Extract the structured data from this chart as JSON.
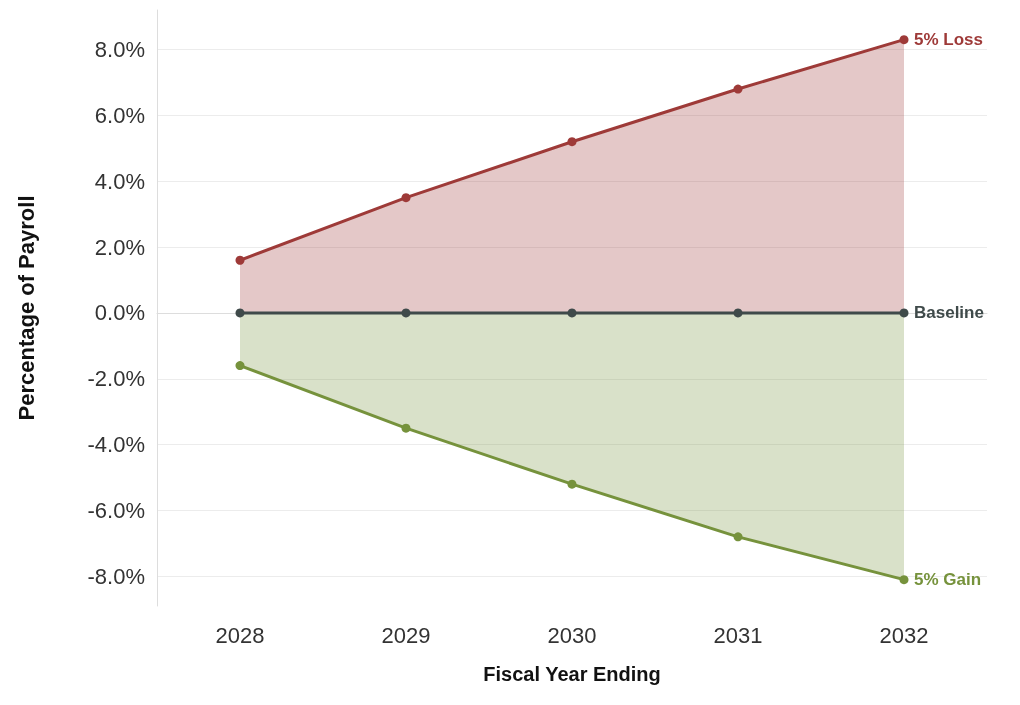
{
  "chart_data": {
    "type": "area",
    "xlabel": "Fiscal Year Ending",
    "ylabel": "Percentage of Payroll",
    "categories": [
      "2028",
      "2029",
      "2030",
      "2031",
      "2032"
    ],
    "series": [
      {
        "name": "5% Loss",
        "color": "#9e3a38",
        "values": [
          1.6,
          3.5,
          5.2,
          6.8,
          8.3
        ]
      },
      {
        "name": "Baseline",
        "type": "line",
        "color": "#3f4a4a",
        "values": [
          0,
          0,
          0,
          0,
          0
        ]
      },
      {
        "name": "5% Gain",
        "color": "#76923c",
        "values": [
          -1.6,
          -3.5,
          -5.2,
          -6.8,
          -8.1
        ]
      }
    ],
    "ylim": [
      -8.9,
      9.2
    ],
    "yticks": [
      {
        "value": -8,
        "label": "-8.0%"
      },
      {
        "value": -6,
        "label": "-6.0%"
      },
      {
        "value": -4,
        "label": "-4.0%"
      },
      {
        "value": -2,
        "label": "-2.0%"
      },
      {
        "value": 0,
        "label": "0.0%"
      },
      {
        "value": 2,
        "label": "2.0%"
      },
      {
        "value": 4,
        "label": "4.0%"
      },
      {
        "value": 6,
        "label": "6.0%"
      },
      {
        "value": 8,
        "label": "8.0%"
      }
    ],
    "grid": "y",
    "legend": false,
    "marker": "circle",
    "line_style": "solid"
  }
}
